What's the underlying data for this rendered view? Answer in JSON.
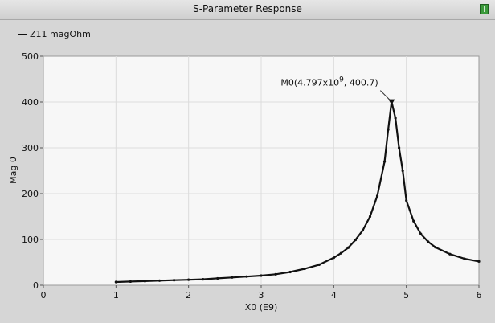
{
  "window": {
    "title": "S-Parameter Response"
  },
  "chart_data": {
    "type": "line",
    "title": "S-Parameter Response",
    "xlabel": "X0 (E9)",
    "ylabel": "Mag 0",
    "xlim": [
      0,
      6
    ],
    "ylim": [
      0,
      500
    ],
    "xticks": [
      "0",
      "1",
      "2",
      "3",
      "4",
      "5",
      "6"
    ],
    "yticks": [
      "0",
      "100",
      "200",
      "300",
      "400",
      "500"
    ],
    "grid": true,
    "legend_position": "top-left",
    "series": [
      {
        "name": "Z11 magOhm",
        "color": "#111111",
        "x": [
          1.0,
          1.2,
          1.4,
          1.6,
          1.8,
          2.0,
          2.2,
          2.4,
          2.6,
          2.8,
          3.0,
          3.2,
          3.4,
          3.6,
          3.8,
          4.0,
          4.1,
          4.2,
          4.3,
          4.4,
          4.5,
          4.6,
          4.7,
          4.75,
          4.797,
          4.85,
          4.9,
          4.95,
          5.0,
          5.1,
          5.2,
          5.3,
          5.4,
          5.6,
          5.8,
          6.0
        ],
        "y": [
          7,
          8,
          9,
          10,
          11,
          12,
          13,
          15,
          17,
          19,
          21,
          24,
          29,
          36,
          45,
          60,
          70,
          82,
          99,
          120,
          150,
          195,
          270,
          340,
          400.7,
          365,
          300,
          250,
          185,
          140,
          112,
          95,
          83,
          68,
          58,
          52
        ]
      }
    ],
    "marker": {
      "label": "M0(4.797x10",
      "exponent": "9",
      "value_text": ", 400.7)",
      "x": 4.797,
      "y": 400.7
    }
  }
}
